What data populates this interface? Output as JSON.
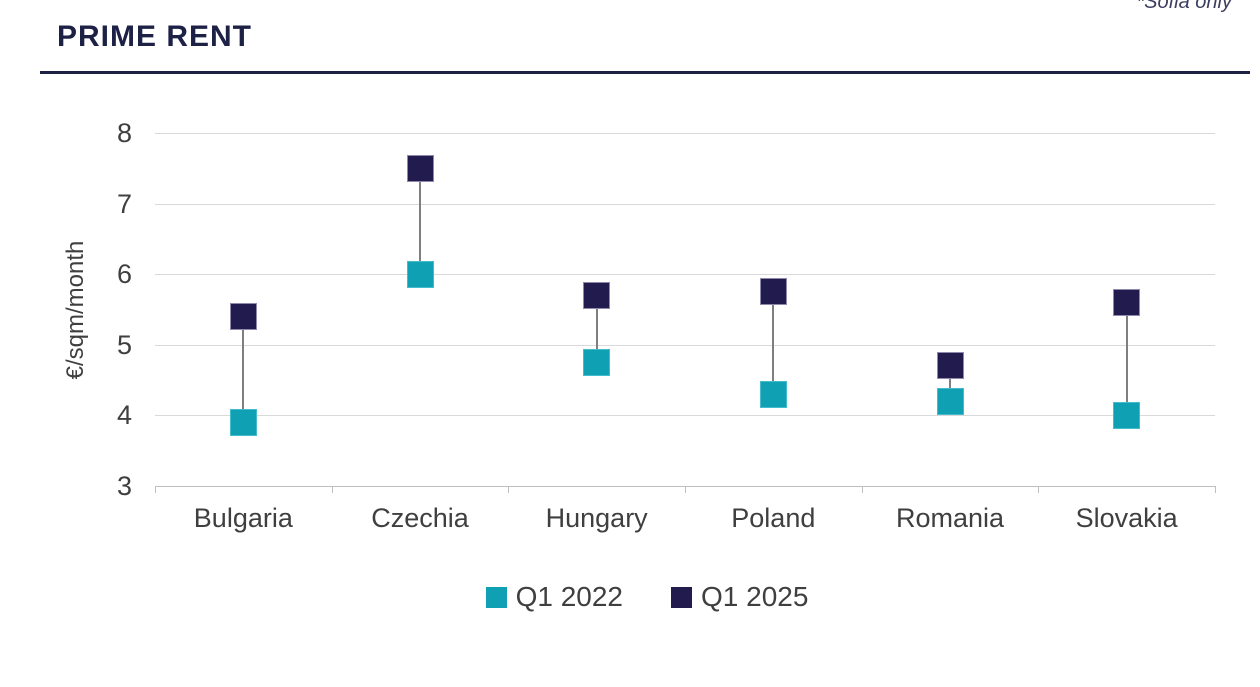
{
  "header": {
    "title": "PRIME RENT",
    "note": "*Sofia only"
  },
  "colors": {
    "title_navy": "#1D2145",
    "text_gray": "#3F3F3F",
    "gridline": "#D9D9D9",
    "axis_line": "#BFBFBF",
    "connector": "#7F7F7F",
    "series_q1_2022_fill": "#0FA0B4",
    "series_q1_2022_border": "#45BCCD",
    "series_q1_2025_fill": "#221C4E",
    "series_q1_2025_border": "#8F8AAD"
  },
  "chart_data": {
    "type": "scatter",
    "variant": "dumbbell-vertical",
    "title": "PRIME RENT",
    "note": "*Sofia only",
    "categories": [
      "Bulgaria",
      "Czechia",
      "Hungary",
      "Poland",
      "Romania",
      "Slovakia"
    ],
    "series": [
      {
        "name": "Q1 2022",
        "color": "#0FA0B4",
        "border_color": "#45BCCD",
        "values": [
          3.9,
          6.0,
          4.75,
          4.3,
          4.2,
          4.0
        ]
      },
      {
        "name": "Q1 2025",
        "color": "#221C4E",
        "border_color": "#8F8AAD",
        "values": [
          5.4,
          7.5,
          5.7,
          5.75,
          4.7,
          5.6
        ]
      }
    ],
    "xlabel": "",
    "ylabel": "€/sqm/month",
    "ylim": [
      3,
      8
    ],
    "yticks": [
      3,
      4,
      5,
      6,
      7,
      8
    ],
    "grid": true,
    "legend_position": "bottom",
    "marker_shape": "square",
    "connector_between_series": true
  }
}
